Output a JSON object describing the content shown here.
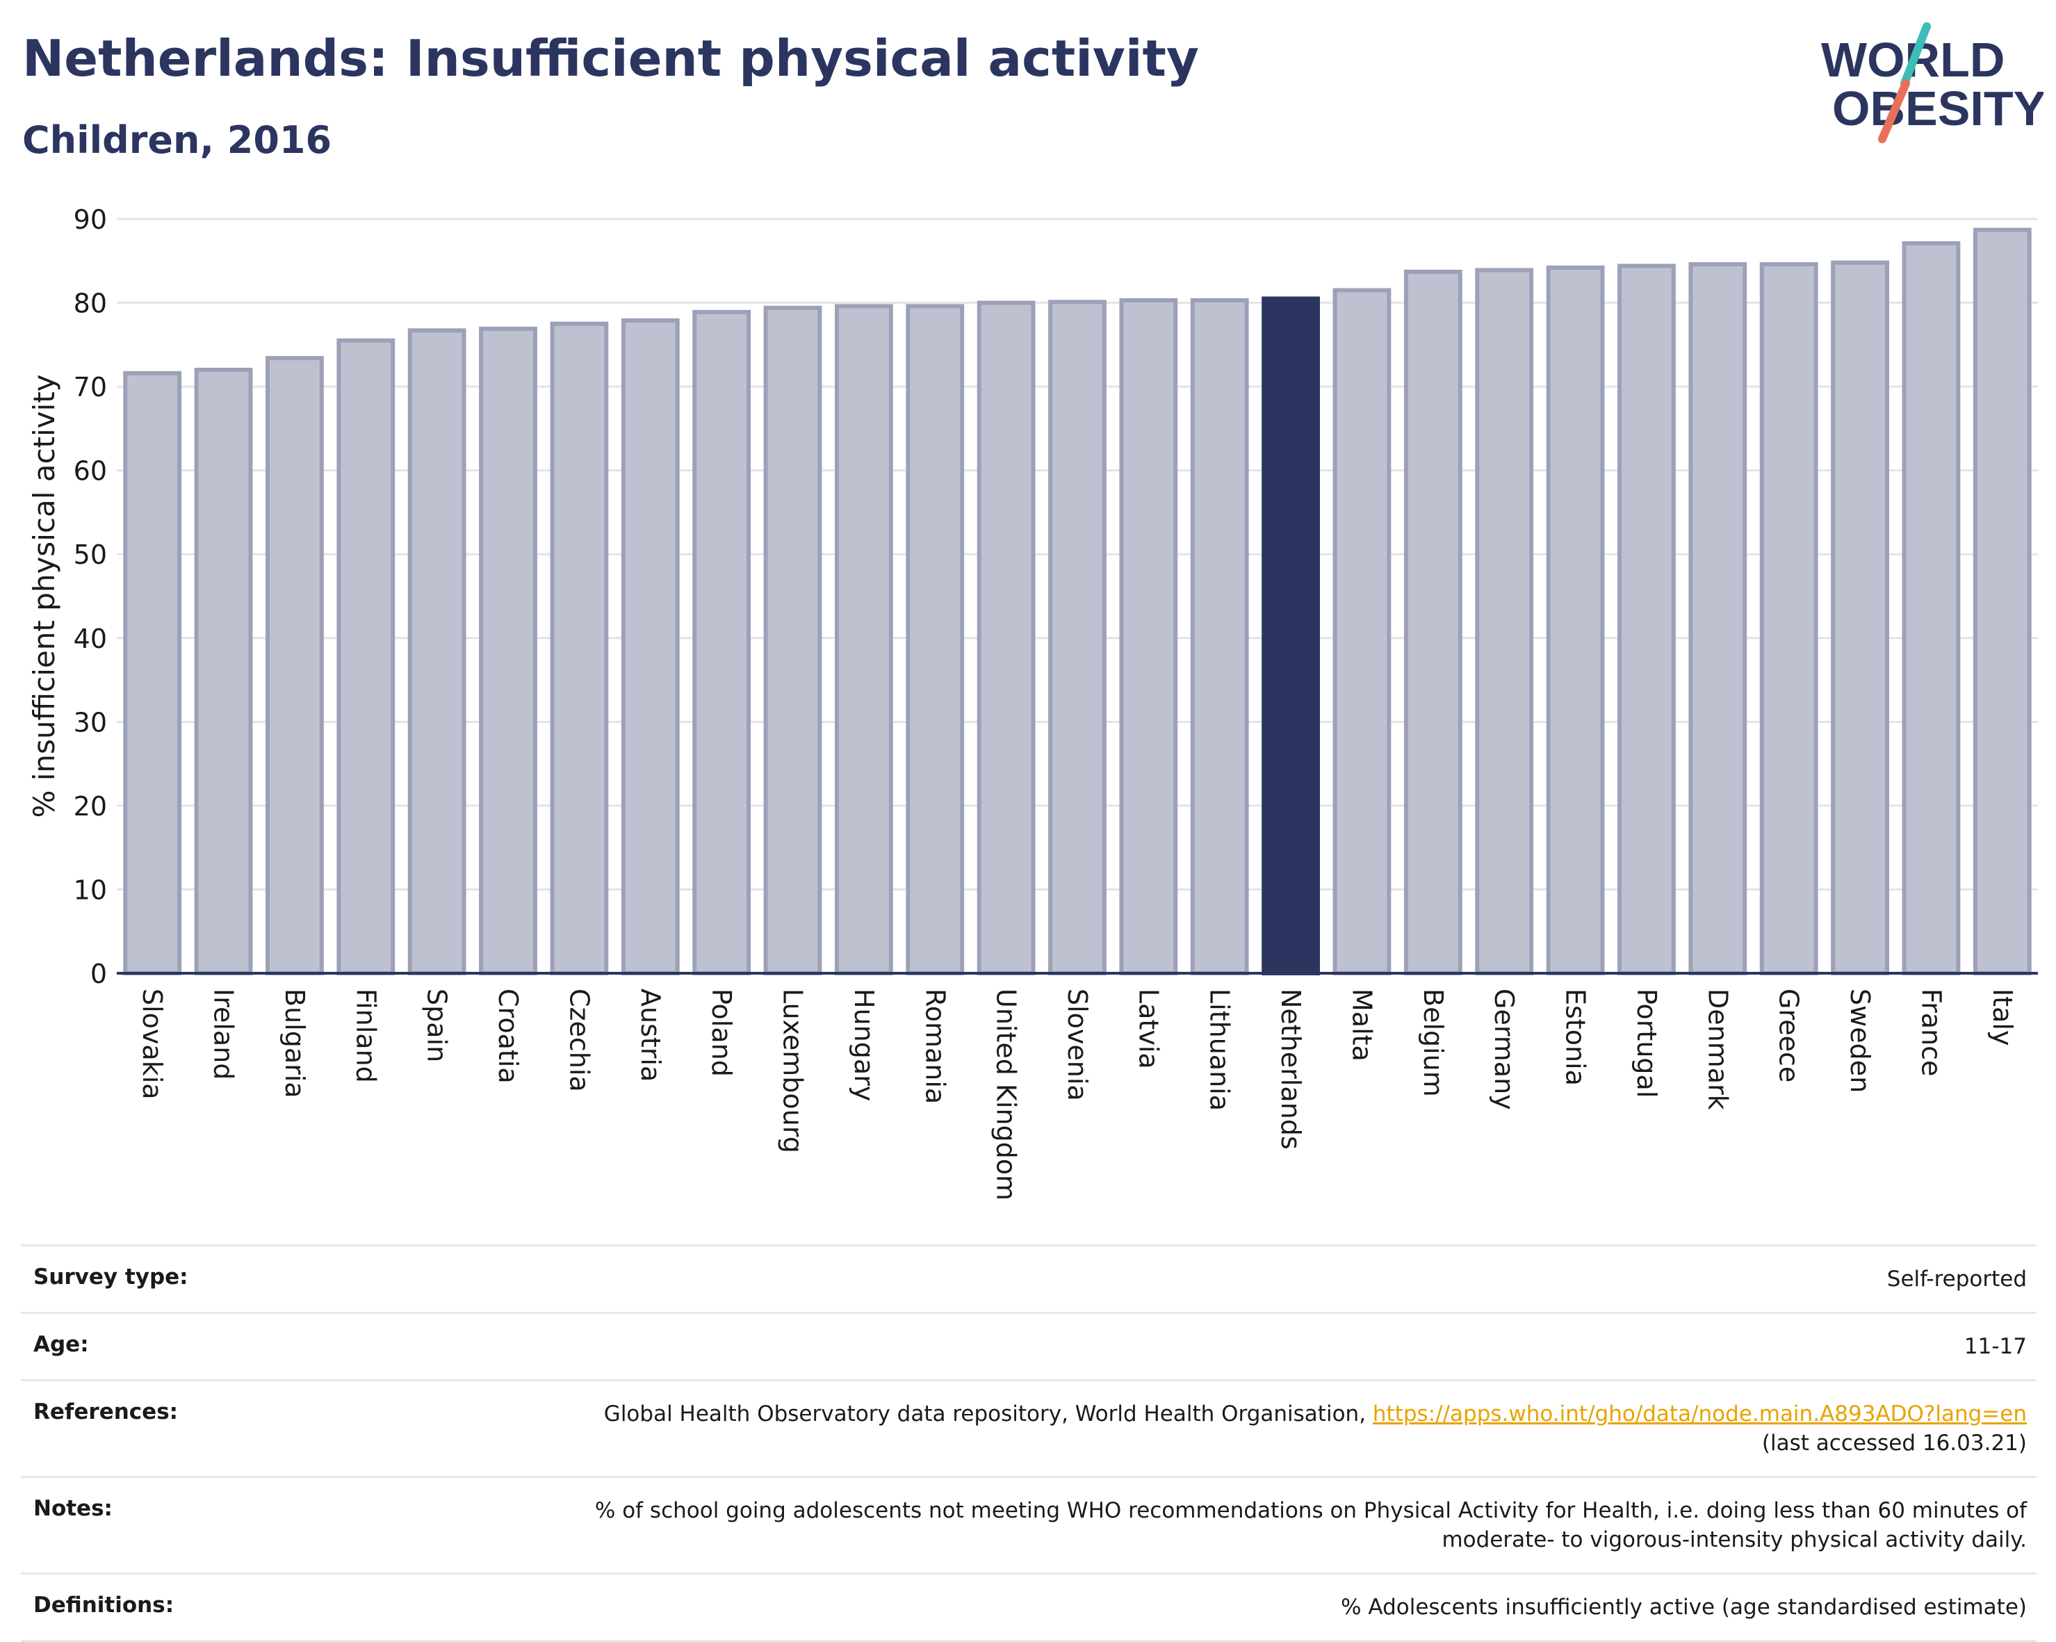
{
  "header": {
    "title": "Netherlands: Insufficient physical activity",
    "subtitle": "Children, 2016"
  },
  "logo": {
    "line1": "WORLD",
    "line2": "OBESITY",
    "colors": {
      "text": "#2b3560",
      "slash_teal": "#3dbdb5",
      "slash_coral": "#e8705a"
    }
  },
  "colors": {
    "bar": "#bec1cf",
    "bar_stroke": "#9ca1b8",
    "highlight": "#2b3560",
    "grid": "#e3e4ea",
    "axis": "#2b3560"
  },
  "chart_data": {
    "type": "bar",
    "ylabel": "% insufficient physical activity",
    "ylim": [
      0,
      90
    ],
    "yticks": [
      0,
      10,
      20,
      30,
      40,
      50,
      60,
      70,
      80,
      90
    ],
    "grid": true,
    "highlight": "Netherlands",
    "categories": [
      "Slovakia",
      "Ireland",
      "Bulgaria",
      "Finland",
      "Spain",
      "Croatia",
      "Czechia",
      "Austria",
      "Poland",
      "Luxembourg",
      "Hungary",
      "Romania",
      "United Kingdom",
      "Slovenia",
      "Latvia",
      "Lithuania",
      "Netherlands",
      "Malta",
      "Belgium",
      "Germany",
      "Estonia",
      "Portugal",
      "Denmark",
      "Greece",
      "Sweden",
      "France",
      "Italy"
    ],
    "values": [
      71.6,
      72.0,
      73.4,
      75.5,
      76.7,
      76.9,
      77.5,
      77.9,
      78.9,
      79.4,
      79.6,
      79.6,
      80.0,
      80.1,
      80.3,
      80.3,
      80.5,
      81.5,
      83.7,
      83.9,
      84.2,
      84.4,
      84.6,
      84.6,
      84.8,
      87.1,
      88.7
    ]
  },
  "info": {
    "survey_type": {
      "label": "Survey type:",
      "value": "Self-reported"
    },
    "age": {
      "label": "Age:",
      "value": "11-17"
    },
    "references": {
      "label": "References:",
      "text": "Global Health Observatory data repository, World Health Organisation, ",
      "link": "https://apps.who.int/gho/data/node.main.A893ADO?lang=en",
      "accessed": "(last accessed 16.03.21)"
    },
    "notes": {
      "label": "Notes:",
      "line1": "% of school going adolescents not meeting WHO recommendations on Physical Activity for Health, i.e. doing less than 60 minutes of",
      "line2": "moderate- to vigorous-intensity physical activity daily."
    },
    "definitions": {
      "label": "Definitions:",
      "value": "% Adolescents insufficiently active (age standardised estimate)"
    }
  }
}
